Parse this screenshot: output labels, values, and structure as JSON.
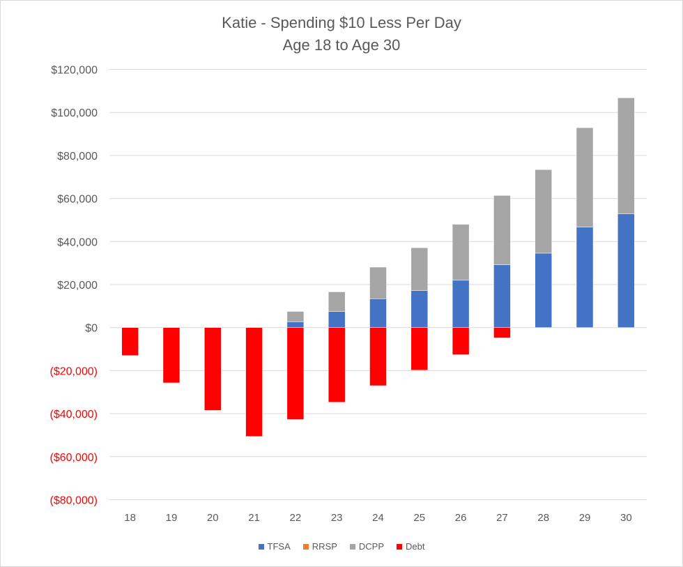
{
  "chart_data": {
    "type": "bar",
    "stacked": true,
    "title": "Katie - Spending $10 Less Per Day",
    "subtitle": "Age 18 to Age 30",
    "xlabel": "",
    "ylabel": "",
    "categories": [
      "18",
      "19",
      "20",
      "21",
      "22",
      "23",
      "24",
      "25",
      "26",
      "27",
      "28",
      "29",
      "30"
    ],
    "series": [
      {
        "name": "TFSA",
        "color": "#4472c4",
        "values": [
          0,
          0,
          0,
          0,
          2700,
          7500,
          13400,
          17200,
          22000,
          29200,
          34600,
          46700,
          52900
        ]
      },
      {
        "name": "RRSP",
        "color": "#ed7d31",
        "values": [
          0,
          0,
          0,
          0,
          0,
          0,
          0,
          0,
          0,
          0,
          0,
          0,
          0
        ]
      },
      {
        "name": "DCPP",
        "color": "#a5a5a5",
        "values": [
          0,
          0,
          0,
          0,
          4800,
          9100,
          14700,
          19900,
          26000,
          32200,
          38800,
          46200,
          53900
        ]
      },
      {
        "name": "Debt",
        "color": "#ff0000",
        "values": [
          -13000,
          -25700,
          -38500,
          -50600,
          -42700,
          -34700,
          -27000,
          -19800,
          -12600,
          -4800,
          0,
          0,
          0
        ]
      }
    ],
    "ylim": [
      -80000,
      120000
    ],
    "yticks": [
      120000,
      100000,
      80000,
      60000,
      40000,
      20000,
      0,
      -20000,
      -40000,
      -60000,
      -80000
    ],
    "ytick_labels": [
      "$120,000",
      "$100,000",
      "$80,000",
      "$60,000",
      "$40,000",
      "$20,000",
      "$0",
      "($20,000)",
      "($40,000)",
      "($60,000)",
      "($80,000)"
    ],
    "negative_label_color": "#ff0000",
    "grid": true,
    "legend_position": "bottom"
  }
}
